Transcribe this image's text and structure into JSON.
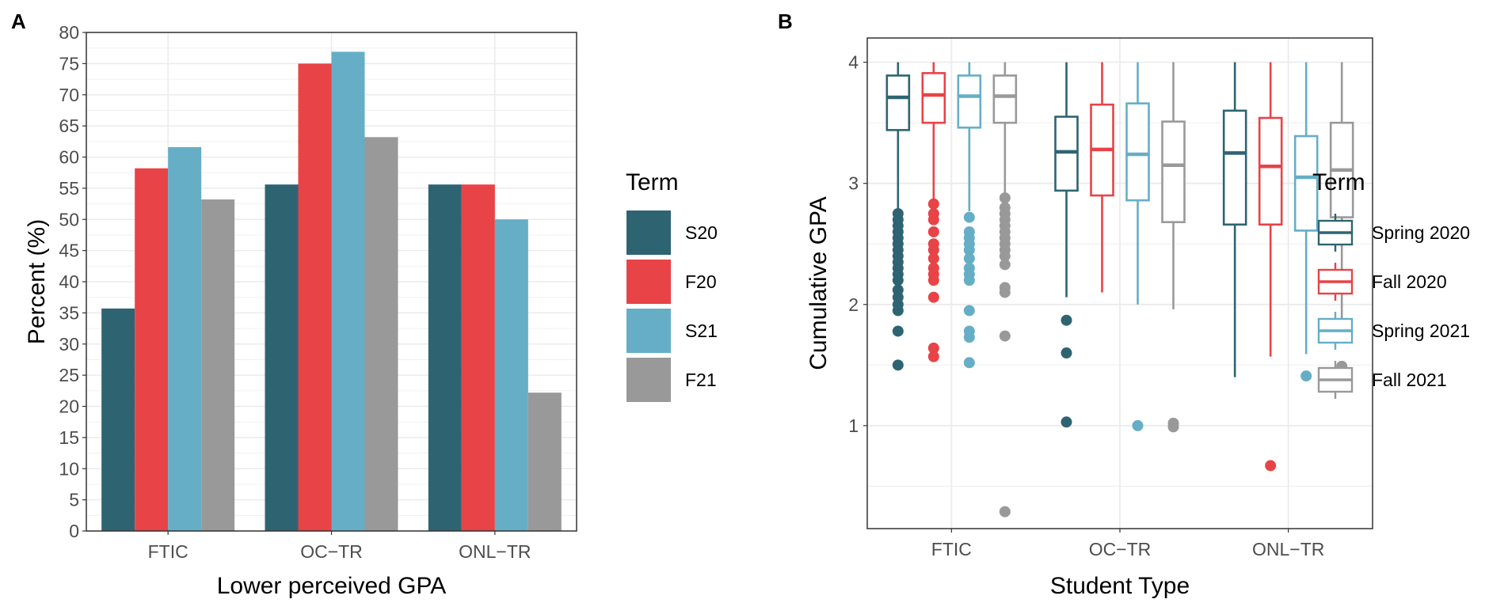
{
  "panel_a_label": "A",
  "panel_b_label": "B",
  "chart_data": [
    {
      "type": "bar",
      "panel": "A",
      "xlabel": "Lower perceived GPA",
      "ylabel": "Percent (%)",
      "ylim": [
        0,
        80
      ],
      "yticks": [
        0,
        5,
        10,
        15,
        20,
        25,
        30,
        35,
        40,
        45,
        50,
        55,
        60,
        65,
        70,
        75,
        80
      ],
      "grid": true,
      "categories": [
        "FTIC",
        "OC−TR",
        "ONL−TR"
      ],
      "series": [
        {
          "name": "S20",
          "color": "#2e6472",
          "values": [
            35.7,
            55.6,
            55.6
          ]
        },
        {
          "name": "F20",
          "color": "#e84347",
          "values": [
            58.2,
            75.0,
            55.6
          ]
        },
        {
          "name": "S21",
          "color": "#65aec6",
          "values": [
            61.6,
            76.9,
            50.0
          ]
        },
        {
          "name": "F21",
          "color": "#999999",
          "values": [
            53.2,
            63.2,
            22.2
          ]
        }
      ],
      "legend": {
        "title": "Term",
        "position": "right",
        "entries": [
          "S20",
          "F20",
          "S21",
          "F21"
        ]
      }
    },
    {
      "type": "box",
      "panel": "B",
      "xlabel": "Student Type",
      "ylabel": "Cumulative GPA",
      "ylim": [
        0.15,
        4.2
      ],
      "yticks": [
        1,
        2,
        3,
        4
      ],
      "grid": true,
      "categories": [
        "FTIC",
        "OC−TR",
        "ONL−TR"
      ],
      "series": [
        {
          "name": "Spring 2020",
          "color": "#2e6472",
          "boxes": [
            {
              "q1": 3.44,
              "median": 3.71,
              "q3": 3.89,
              "whisker_low": 2.78,
              "whisker_high": 4.0,
              "outliers": [
                2.75,
                2.7,
                2.65,
                2.6,
                2.55,
                2.5,
                2.45,
                2.4,
                2.35,
                2.3,
                2.25,
                2.2,
                2.12,
                2.06,
                2.0,
                1.95,
                1.78,
                1.5
              ]
            },
            {
              "q1": 2.94,
              "median": 3.26,
              "q3": 3.55,
              "whisker_low": 2.06,
              "whisker_high": 4.0,
              "outliers": [
                1.87,
                1.6,
                1.03
              ]
            },
            {
              "q1": 2.66,
              "median": 3.25,
              "q3": 3.6,
              "whisker_low": 1.4,
              "whisker_high": 4.0,
              "outliers": []
            }
          ]
        },
        {
          "name": "Fall 2020",
          "color": "#e84347",
          "boxes": [
            {
              "q1": 3.5,
              "median": 3.73,
              "q3": 3.91,
              "whisker_low": 2.86,
              "whisker_high": 4.0,
              "outliers": [
                2.83,
                2.75,
                2.7,
                2.6,
                2.5,
                2.45,
                2.38,
                2.3,
                2.25,
                2.2,
                2.06,
                1.64,
                1.57
              ]
            },
            {
              "q1": 2.9,
              "median": 3.28,
              "q3": 3.65,
              "whisker_low": 2.1,
              "whisker_high": 4.0,
              "outliers": []
            },
            {
              "q1": 2.66,
              "median": 3.14,
              "q3": 3.54,
              "whisker_low": 1.57,
              "whisker_high": 4.0,
              "outliers": [
                0.67
              ]
            }
          ]
        },
        {
          "name": "Spring 2021",
          "color": "#65aec6",
          "boxes": [
            {
              "q1": 3.46,
              "median": 3.72,
              "q3": 3.89,
              "whisker_low": 2.77,
              "whisker_high": 4.0,
              "outliers": [
                2.72,
                2.6,
                2.55,
                2.5,
                2.45,
                2.38,
                2.3,
                2.25,
                2.2,
                1.95,
                1.78,
                1.73,
                1.52
              ]
            },
            {
              "q1": 2.86,
              "median": 3.24,
              "q3": 3.66,
              "whisker_low": 2.0,
              "whisker_high": 4.0,
              "outliers": [
                1.0
              ]
            },
            {
              "q1": 2.61,
              "median": 3.05,
              "q3": 3.39,
              "whisker_low": 1.59,
              "whisker_high": 4.0,
              "outliers": [
                1.41
              ]
            }
          ]
        },
        {
          "name": "Fall 2021",
          "color": "#999999",
          "boxes": [
            {
              "q1": 3.5,
              "median": 3.72,
              "q3": 3.89,
              "whisker_low": 2.9,
              "whisker_high": 4.0,
              "outliers": [
                2.88,
                2.8,
                2.75,
                2.7,
                2.65,
                2.6,
                2.55,
                2.5,
                2.45,
                2.4,
                2.33,
                2.14,
                2.1,
                1.74,
                0.29
              ]
            },
            {
              "q1": 2.68,
              "median": 3.15,
              "q3": 3.51,
              "whisker_low": 1.96,
              "whisker_high": 4.0,
              "outliers": [
                1.02,
                0.99
              ]
            },
            {
              "q1": 2.72,
              "median": 3.11,
              "q3": 3.5,
              "whisker_low": 1.81,
              "whisker_high": 4.0,
              "outliers": [
                1.49
              ]
            }
          ]
        }
      ],
      "legend": {
        "title": "Term",
        "position": "right",
        "entries": [
          "Spring 2020",
          "Fall 2020",
          "Spring 2021",
          "Fall 2021"
        ]
      }
    }
  ]
}
